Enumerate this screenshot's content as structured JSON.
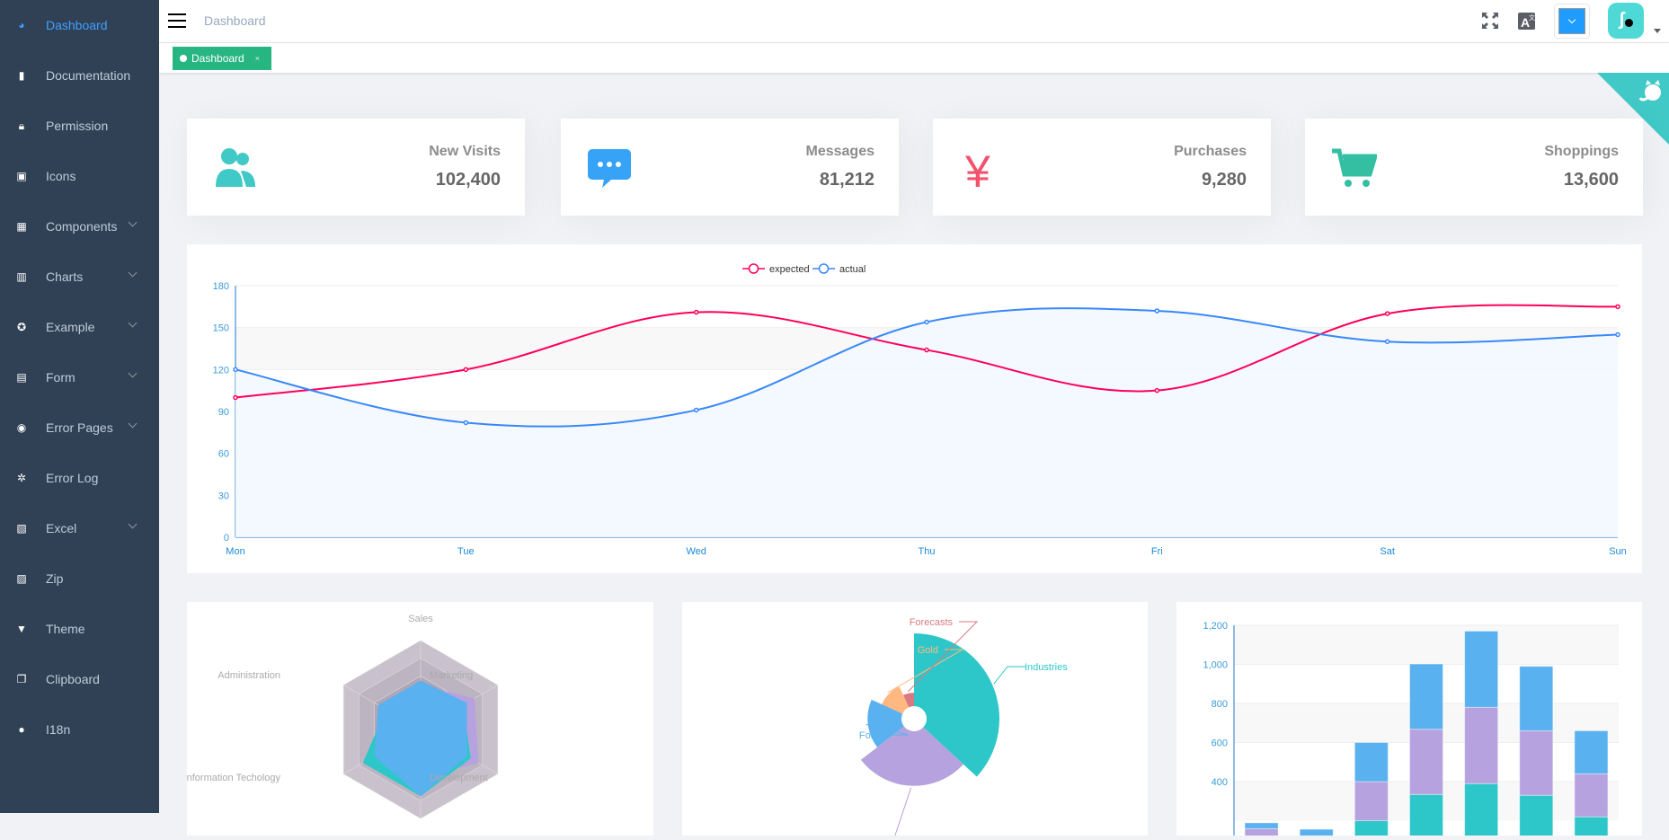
{
  "sidebar": {
    "items": [
      {
        "label": "Dashboard",
        "icon": "dashboard-icon",
        "active": true
      },
      {
        "label": "Documentation",
        "icon": "documentation-icon"
      },
      {
        "label": "Permission",
        "icon": "lock-icon"
      },
      {
        "label": "Icons",
        "icon": "icons-icon"
      },
      {
        "label": "Components",
        "icon": "component-icon",
        "submenu": true
      },
      {
        "label": "Charts",
        "icon": "chart-icon",
        "submenu": true
      },
      {
        "label": "Example",
        "icon": "example-icon",
        "submenu": true
      },
      {
        "label": "Form",
        "icon": "form-icon",
        "submenu": true
      },
      {
        "label": "Error Pages",
        "icon": "404-icon",
        "submenu": true
      },
      {
        "label": "Error Log",
        "icon": "bug-icon"
      },
      {
        "label": "Excel",
        "icon": "excel-icon",
        "submenu": true
      },
      {
        "label": "Zip",
        "icon": "zip-icon"
      },
      {
        "label": "Theme",
        "icon": "theme-icon"
      },
      {
        "label": "Clipboard",
        "icon": "clipboard-icon"
      },
      {
        "label": "I18n",
        "icon": "international-icon"
      }
    ]
  },
  "header": {
    "breadcrumb": "Dashboard"
  },
  "tags": [
    {
      "label": "Dashboard",
      "close": "×"
    }
  ],
  "cards": [
    {
      "title": "New Visits",
      "value": "102,400",
      "icon": "peoples-icon",
      "color": "#40c9c6"
    },
    {
      "title": "Messages",
      "value": "81,212",
      "icon": "message-icon",
      "color": "#36a3f7"
    },
    {
      "title": "Purchases",
      "value": "9,280",
      "icon": "money-icon",
      "color": "#f4516c"
    },
    {
      "title": "Shoppings",
      "value": "13,600",
      "icon": "shopping-icon",
      "color": "#34bfa3"
    }
  ],
  "chart_data": [
    {
      "type": "line",
      "categories": [
        "Mon",
        "Tue",
        "Wed",
        "Thu",
        "Fri",
        "Sat",
        "Sun"
      ],
      "ylim": [
        0,
        180
      ],
      "yticks": [
        "0",
        "30",
        "60",
        "90",
        "120",
        "150",
        "180"
      ],
      "legend": "top-center",
      "grid": true,
      "series": [
        {
          "name": "expected",
          "values": [
            100,
            120,
            161,
            134,
            105,
            160,
            165
          ],
          "color": "#FF005A"
        },
        {
          "name": "actual",
          "values": [
            120,
            82,
            91,
            154,
            162,
            140,
            145
          ],
          "color": "#3888fa",
          "area": true
        }
      ]
    },
    {
      "type": "radar",
      "indicators": [
        {
          "name": "Sales",
          "max": 10000
        },
        {
          "name": "Administration",
          "max": 20000
        },
        {
          "name": "Information Techology",
          "max": 20000
        },
        {
          "name": "",
          "max": 20000
        },
        {
          "name": "Development",
          "max": 20000
        },
        {
          "name": "Marketing",
          "max": 20000
        }
      ],
      "series": [
        {
          "values": [
            5000,
            7000,
            12000,
            11000,
            15000,
            14000
          ],
          "color": "#b6a2de"
        },
        {
          "values": [
            4000,
            9000,
            15000,
            15000,
            13000,
            11000
          ],
          "color": "#2ec7c9"
        },
        {
          "values": [
            5500,
            11000,
            12000,
            15000,
            12000,
            12000
          ],
          "color": "#5ab1ef"
        }
      ]
    },
    {
      "type": "pie",
      "rose": "radius",
      "slices": [
        {
          "name": "Industries",
          "value": 320,
          "color": "#2ec7c9"
        },
        {
          "name": "",
          "value": 240,
          "color": "#b6a2de"
        },
        {
          "name": "Forex",
          "value": 149,
          "color": "#5ab1ef"
        },
        {
          "name": "Gold",
          "value": 100,
          "color": "#ffb980"
        },
        {
          "name": "Forecasts",
          "value": 59,
          "color": "#d87a80"
        }
      ]
    },
    {
      "type": "bar",
      "stacked": true,
      "ylim": [
        0,
        1200
      ],
      "yticks": [
        "400",
        "600",
        "800",
        "1,000",
        "1,200"
      ],
      "grid": true,
      "series": [
        {
          "values": [
            79,
            52,
            200,
            334,
            390,
            330,
            220
          ],
          "color": "#2ec7c9"
        },
        {
          "values": [
            80,
            52,
            200,
            334,
            390,
            330,
            220
          ],
          "color": "#b6a2de"
        },
        {
          "values": [
            30,
            52,
            200,
            334,
            390,
            330,
            220
          ],
          "color": "#5ab1ef"
        }
      ]
    }
  ]
}
